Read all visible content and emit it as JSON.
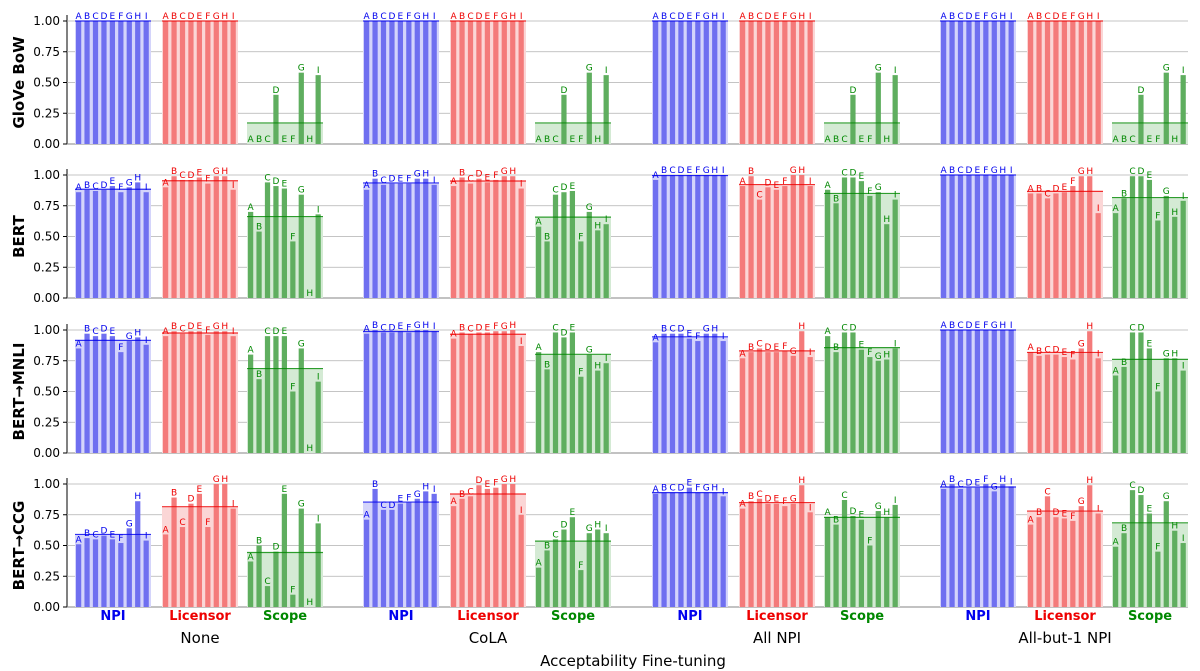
{
  "chart_data": {
    "type": "bar",
    "xlabel": "Acceptability Fine-tuning",
    "conditions": [
      "None",
      "CoLA",
      "All NPI",
      "All-but-1 NPI"
    ],
    "groups": [
      "NPI",
      "Licensor",
      "Scope"
    ],
    "group_colors": {
      "NPI": "#0000ee",
      "Licensor": "#ee0000",
      "Scope": "#008800"
    },
    "bar_colors": {
      "NPI": "#6f6ff0",
      "Licensor": "#f47a7a",
      "Scope": "#5fae5f"
    },
    "band_colors": {
      "NPI": "#d4d4fb",
      "Licensor": "#fbd6d6",
      "Scope": "#d4ead4"
    },
    "environments": [
      "A",
      "B",
      "C",
      "D",
      "E",
      "F",
      "G",
      "H",
      "I"
    ],
    "yticks": [
      "0.00",
      "0.25",
      "0.50",
      "0.75",
      "1.00"
    ],
    "ylim": [
      0,
      1
    ],
    "grid": true,
    "rows": [
      {
        "model": "GloVe BoW",
        "cells": [
          {
            "NPI": [
              1,
              1,
              1,
              1,
              1,
              1,
              1,
              1,
              1
            ],
            "Licensor": [
              1,
              1,
              1,
              1,
              1,
              1,
              1,
              1,
              1
            ],
            "Scope": [
              0,
              0,
              0,
              0.4,
              0,
              0,
              0.58,
              0,
              0.56
            ]
          },
          {
            "NPI": [
              1,
              1,
              1,
              1,
              1,
              1,
              1,
              1,
              1
            ],
            "Licensor": [
              1,
              1,
              1,
              1,
              1,
              1,
              1,
              1,
              1
            ],
            "Scope": [
              0,
              0,
              0,
              0.4,
              0,
              0,
              0.58,
              0,
              0.56
            ]
          },
          {
            "NPI": [
              1,
              1,
              1,
              1,
              1,
              1,
              1,
              1,
              1
            ],
            "Licensor": [
              1,
              1,
              1,
              1,
              1,
              1,
              1,
              1,
              1
            ],
            "Scope": [
              0,
              0,
              0,
              0.4,
              0,
              0,
              0.58,
              0,
              0.56
            ]
          },
          {
            "NPI": [
              1,
              1,
              1,
              1,
              1,
              1,
              1,
              1,
              1
            ],
            "Licensor": [
              1,
              1,
              1,
              1,
              1,
              1,
              1,
              1,
              1
            ],
            "Scope": [
              0,
              0,
              0,
              0.4,
              0,
              0,
              0.58,
              0,
              0.56
            ]
          }
        ]
      },
      {
        "model": "BERT",
        "cells": [
          {
            "NPI": [
              0.86,
              0.88,
              0.87,
              0.88,
              0.91,
              0.86,
              0.9,
              0.94,
              0.86
            ],
            "Licensor": [
              0.9,
              0.99,
              0.96,
              0.96,
              0.98,
              0.93,
              0.99,
              0.99,
              0.88
            ],
            "Scope": [
              0.7,
              0.54,
              0.94,
              0.91,
              0.89,
              0.46,
              0.84,
              0,
              0.68
            ]
          },
          {
            "NPI": [
              0.88,
              0.97,
              0.92,
              0.93,
              0.93,
              0.93,
              0.97,
              0.97,
              0.92
            ],
            "Licensor": [
              0.91,
              0.98,
              0.93,
              0.97,
              0.94,
              0.96,
              0.99,
              0.99,
              0.89
            ],
            "Scope": [
              0.58,
              0.46,
              0.84,
              0.86,
              0.87,
              0.46,
              0.7,
              0.55,
              0.6
            ]
          },
          {
            "NPI": [
              0.96,
              1,
              1,
              1,
              1,
              1,
              1,
              1,
              1
            ],
            "Licensor": [
              0.91,
              0.99,
              0.8,
              0.9,
              0.88,
              0.91,
              1,
              1,
              0.91
            ],
            "Scope": [
              0.88,
              0.77,
              0.98,
              0.98,
              0.95,
              0.83,
              0.86,
              0.6,
              0.8
            ]
          },
          {
            "NPI": [
              1,
              1,
              1,
              1,
              1,
              1,
              1,
              1,
              1
            ],
            "Licensor": [
              0.85,
              0.85,
              0.81,
              0.85,
              0.86,
              0.91,
              0.99,
              0.99,
              0.69
            ],
            "Scope": [
              0.69,
              0.81,
              0.99,
              0.99,
              0.96,
              0.63,
              0.83,
              0.66,
              0.79
            ]
          }
        ]
      },
      {
        "model": "BERT→MNLI",
        "cells": [
          {
            "NPI": [
              0.85,
              0.97,
              0.95,
              0.97,
              0.95,
              0.82,
              0.91,
              0.94,
              0.88
            ],
            "Licensor": [
              0.95,
              0.99,
              0.97,
              0.99,
              0.99,
              0.96,
              0.99,
              0.99,
              0.95
            ],
            "Scope": [
              0.8,
              0.6,
              0.95,
              0.95,
              0.95,
              0.5,
              0.85,
              0,
              0.58
            ]
          },
          {
            "NPI": [
              0.97,
              1,
              0.98,
              0.98,
              0.99,
              0.98,
              1,
              1,
              0.99
            ],
            "Licensor": [
              0.93,
              0.98,
              0.97,
              0.98,
              0.98,
              0.99,
              0.99,
              1,
              0.87
            ],
            "Scope": [
              0.82,
              0.68,
              0.98,
              0.94,
              0.98,
              0.62,
              0.8,
              0.67,
              0.73
            ]
          },
          {
            "NPI": [
              0.9,
              0.97,
              0.97,
              0.97,
              0.93,
              0.91,
              0.97,
              0.97,
              0.91
            ],
            "Licensor": [
              0.77,
              0.82,
              0.85,
              0.82,
              0.82,
              0.83,
              0.79,
              0.99,
              0.78
            ],
            "Scope": [
              0.95,
              0.82,
              0.98,
              0.98,
              0.84,
              0.78,
              0.75,
              0.76,
              0.85
            ]
          },
          {
            "NPI": [
              1,
              1,
              1,
              1,
              1,
              1,
              1,
              1,
              1
            ],
            "Licensor": [
              0.82,
              0.79,
              0.8,
              0.8,
              0.78,
              0.76,
              0.85,
              0.99,
              0.77
            ],
            "Scope": [
              0.63,
              0.7,
              0.98,
              0.98,
              0.85,
              0.5,
              0.77,
              0.77,
              0.67
            ]
          }
        ]
      },
      {
        "model": "BERT→CCG",
        "cells": [
          {
            "NPI": [
              0.51,
              0.56,
              0.55,
              0.58,
              0.55,
              0.52,
              0.64,
              0.86,
              0.54
            ],
            "Licensor": [
              0.59,
              0.89,
              0.65,
              0.84,
              0.92,
              0.65,
              1,
              1,
              0.8
            ],
            "Scope": [
              0.37,
              0.5,
              0.17,
              0.45,
              0.92,
              0.1,
              0.8,
              0,
              0.68
            ]
          },
          {
            "NPI": [
              0.71,
              0.96,
              0.79,
              0.79,
              0.84,
              0.85,
              0.88,
              0.94,
              0.92
            ],
            "Licensor": [
              0.82,
              0.88,
              0.9,
              0.99,
              0.96,
              0.97,
              1,
              1,
              0.75
            ],
            "Scope": [
              0.32,
              0.46,
              0.55,
              0.63,
              0.73,
              0.3,
              0.6,
              0.63,
              0.6
            ]
          },
          {
            "NPI": [
              0.92,
              0.93,
              0.93,
              0.93,
              0.97,
              0.93,
              0.93,
              0.93,
              0.9
            ],
            "Licensor": [
              0.8,
              0.86,
              0.88,
              0.84,
              0.84,
              0.82,
              0.84,
              0.99,
              0.77
            ],
            "Scope": [
              0.73,
              0.67,
              0.87,
              0.74,
              0.71,
              0.5,
              0.78,
              0.73,
              0.83
            ]
          },
          {
            "NPI": [
              0.96,
              1,
              0.96,
              0.97,
              0.97,
              1,
              0.94,
              1,
              0.98
            ],
            "Licensor": [
              0.67,
              0.73,
              0.9,
              0.73,
              0.72,
              0.7,
              0.82,
              0.99,
              0.76
            ],
            "Scope": [
              0.49,
              0.6,
              0.95,
              0.91,
              0.76,
              0.45,
              0.86,
              0.62,
              0.52
            ]
          }
        ]
      }
    ]
  }
}
